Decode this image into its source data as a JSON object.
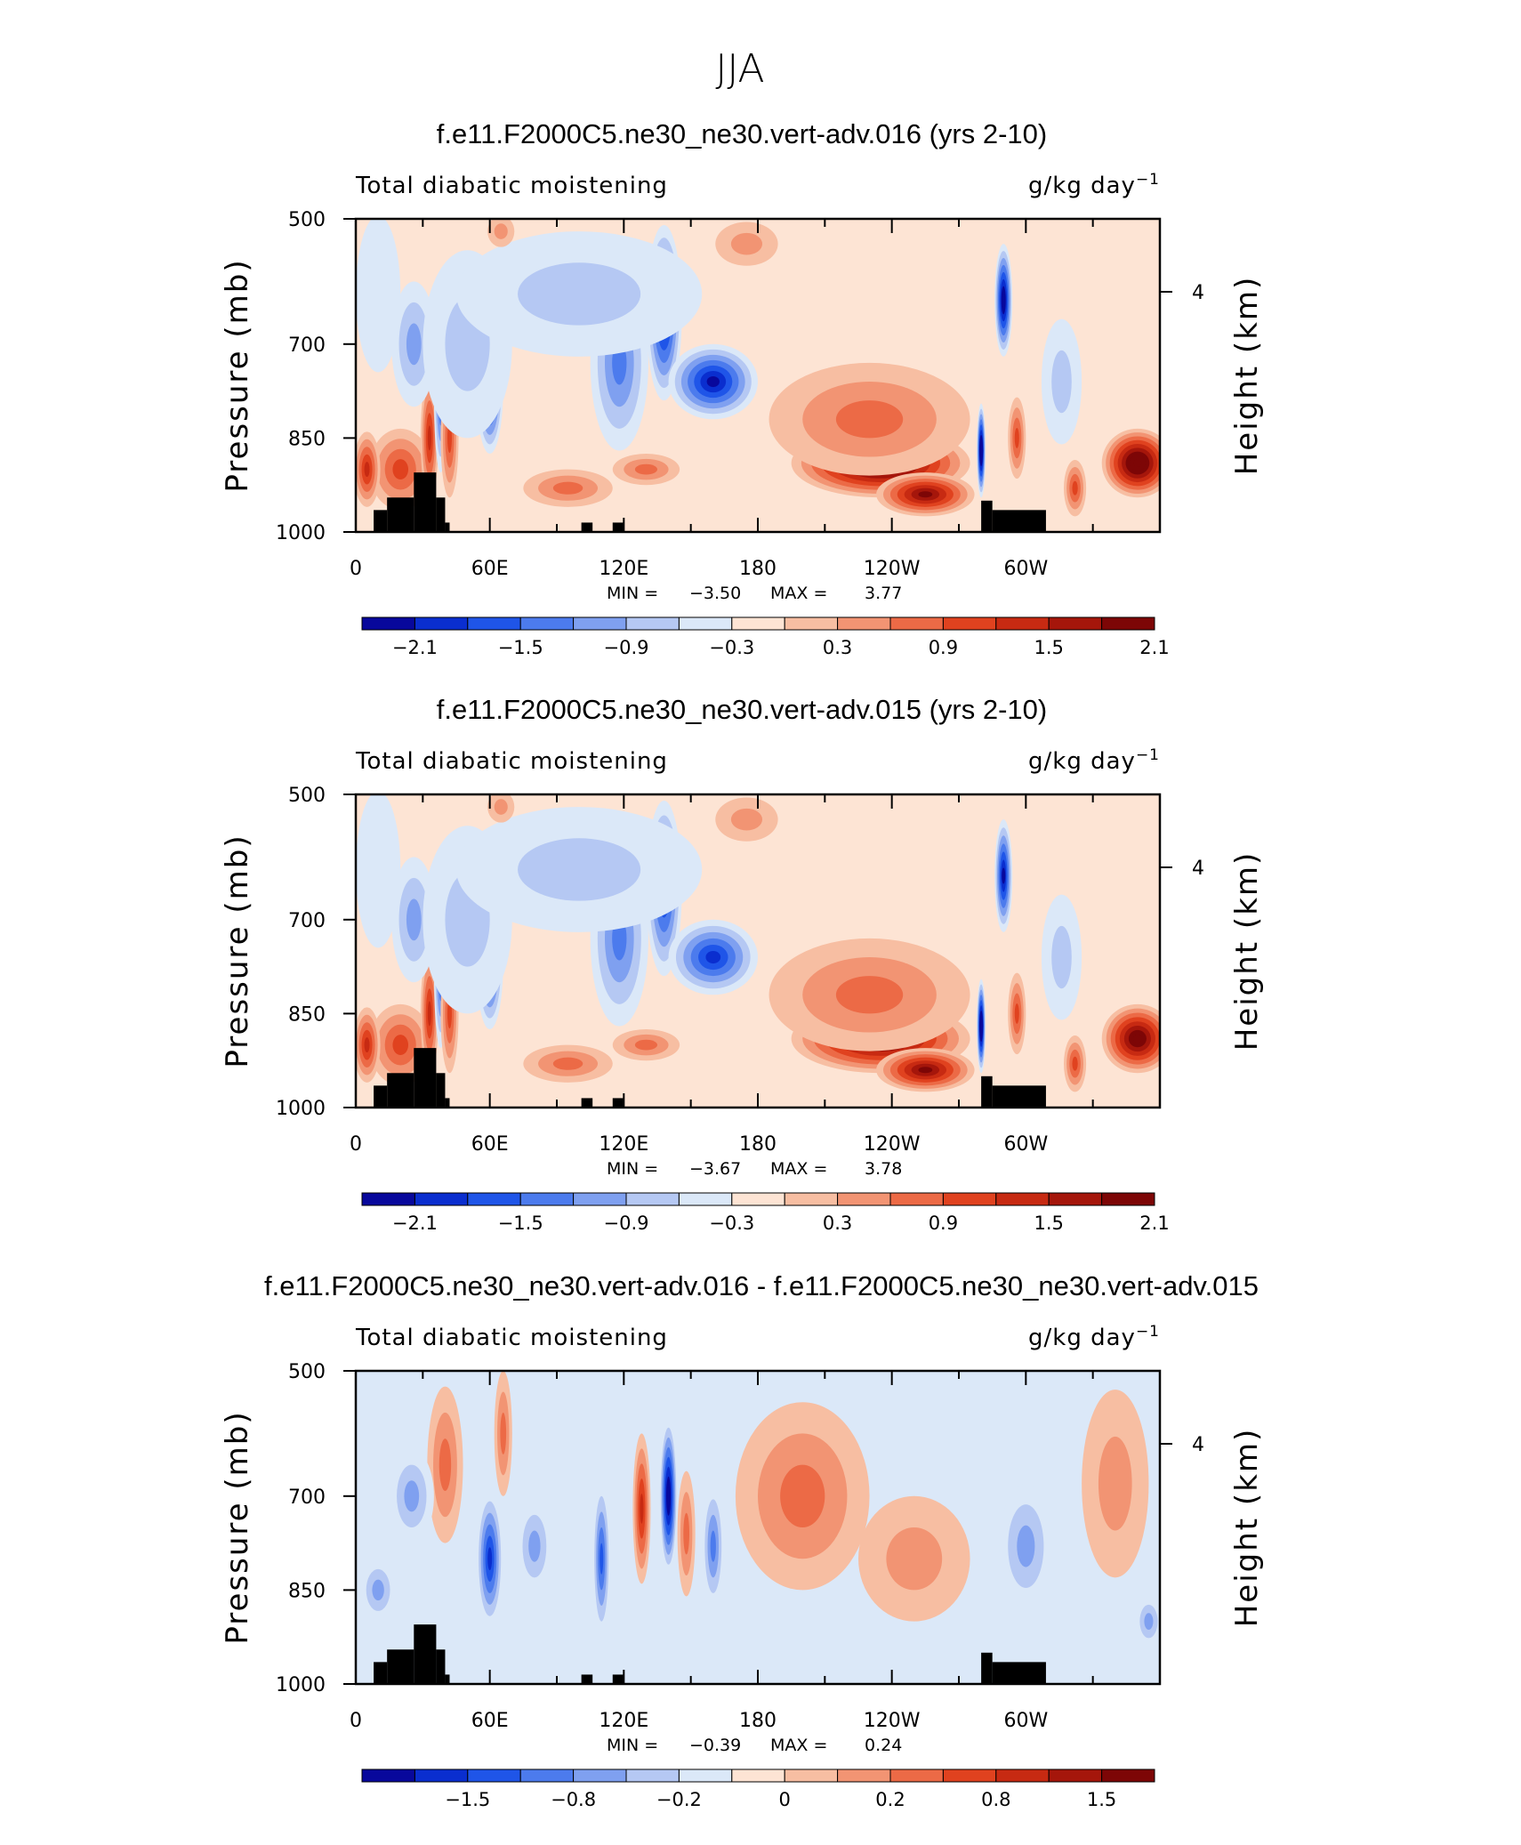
{
  "figure_title": "JJA",
  "chart_data": [
    {
      "type": "heatmap",
      "title": "f.e11.F2000C5.ne30_ne30.vert-adv.016 (yrs 2-10)",
      "left_label": "Total diabatic moistening",
      "units_base": "g/kg day",
      "units_exp": "−1",
      "ylabel": "Pressure (mb)",
      "ylabel_right": "Height (km)",
      "y_ticks": [
        "500",
        "700",
        "850",
        "1000"
      ],
      "y_tick_values": [
        500,
        700,
        850,
        1000
      ],
      "y_right_tick": "4",
      "x_ticks": [
        "0",
        "60E",
        "120E",
        "180",
        "120W",
        "60W"
      ],
      "x_tick_values": [
        0,
        60,
        120,
        180,
        240,
        300
      ],
      "xlim": [
        0,
        360
      ],
      "ylim": [
        1000,
        500
      ],
      "min_label": "MIN =",
      "min_value": "−3.50",
      "max_label": "MAX =",
      "max_value": "3.77",
      "colorbar_colors": [
        "#08089c",
        "#0a2ecf",
        "#1f55e8",
        "#4c7bed",
        "#7fa0f0",
        "#b5c8f3",
        "#dbe8f8",
        "#fde4d4",
        "#f7bea2",
        "#f29473",
        "#ec6a46",
        "#e0421f",
        "#c72a12",
        "#a5160b",
        "#7d0606"
      ],
      "colorbar_labels": [
        "−2.1",
        "−1.5",
        "−0.9",
        "−0.3",
        "0.3",
        "0.9",
        "1.5",
        "2.1"
      ],
      "features": [
        {
          "lon": 20,
          "p": 900,
          "v": 1.2,
          "w": 14,
          "h": 130
        },
        {
          "lon": 33,
          "p": 850,
          "v": 1.5,
          "w": 4,
          "h": 200
        },
        {
          "lon": 38,
          "p": 780,
          "v": -1.6,
          "w": 3,
          "h": 250
        },
        {
          "lon": 42,
          "p": 850,
          "v": 1.2,
          "w": 4,
          "h": 190
        },
        {
          "lon": 26,
          "p": 700,
          "v": -0.8,
          "w": 10,
          "h": 200
        },
        {
          "lon": 60,
          "p": 770,
          "v": -2.0,
          "w": 6,
          "h": 210
        },
        {
          "lon": 50,
          "p": 700,
          "v": -0.6,
          "w": 20,
          "h": 300
        },
        {
          "lon": 95,
          "p": 930,
          "v": 1.0,
          "w": 20,
          "h": 60
        },
        {
          "lon": 130,
          "p": 900,
          "v": 0.9,
          "w": 15,
          "h": 50
        },
        {
          "lon": 118,
          "p": 730,
          "v": -1.2,
          "w": 13,
          "h": 280
        },
        {
          "lon": 138,
          "p": 650,
          "v": -2.2,
          "w": 8,
          "h": 280
        },
        {
          "lon": 160,
          "p": 760,
          "v": -2.0,
          "w": 20,
          "h": 120
        },
        {
          "lon": 100,
          "p": 620,
          "v": -0.5,
          "w": 55,
          "h": 200
        },
        {
          "lon": 175,
          "p": 540,
          "v": 0.6,
          "w": 14,
          "h": 70
        },
        {
          "lon": 65,
          "p": 520,
          "v": 0.5,
          "w": 6,
          "h": 50
        },
        {
          "lon": 235,
          "p": 890,
          "v": 2.8,
          "w": 40,
          "h": 110
        },
        {
          "lon": 255,
          "p": 940,
          "v": 2.0,
          "w": 22,
          "h": 70
        },
        {
          "lon": 230,
          "p": 820,
          "v": 1.0,
          "w": 45,
          "h": 180
        },
        {
          "lon": 280,
          "p": 870,
          "v": -2.8,
          "w": 2,
          "h": 150
        },
        {
          "lon": 290,
          "p": 630,
          "v": -2.4,
          "w": 4,
          "h": 180
        },
        {
          "lon": 296,
          "p": 850,
          "v": 1.2,
          "w": 4,
          "h": 130
        },
        {
          "lon": 316,
          "p": 760,
          "v": -0.7,
          "w": 9,
          "h": 200
        },
        {
          "lon": 322,
          "p": 930,
          "v": 1.2,
          "w": 5,
          "h": 90
        },
        {
          "lon": 350,
          "p": 890,
          "v": 2.6,
          "w": 16,
          "h": 110
        },
        {
          "lon": 5,
          "p": 900,
          "v": 1.6,
          "w": 6,
          "h": 120
        },
        {
          "lon": 10,
          "p": 620,
          "v": -0.4,
          "w": 10,
          "h": 250
        }
      ],
      "feature_scale": 1.0
    },
    {
      "type": "heatmap",
      "title": "f.e11.F2000C5.ne30_ne30.vert-adv.015 (yrs 2-10)",
      "left_label": "Total diabatic moistening",
      "units_base": "g/kg day",
      "units_exp": "−1",
      "ylabel": "Pressure (mb)",
      "ylabel_right": "Height (km)",
      "y_ticks": [
        "500",
        "700",
        "850",
        "1000"
      ],
      "y_tick_values": [
        500,
        700,
        850,
        1000
      ],
      "y_right_tick": "4",
      "x_ticks": [
        "0",
        "60E",
        "120E",
        "180",
        "120W",
        "60W"
      ],
      "x_tick_values": [
        0,
        60,
        120,
        180,
        240,
        300
      ],
      "xlim": [
        0,
        360
      ],
      "ylim": [
        1000,
        500
      ],
      "min_label": "MIN =",
      "min_value": "−3.67",
      "max_label": "MAX =",
      "max_value": "3.78",
      "colorbar_colors": [
        "#08089c",
        "#0a2ecf",
        "#1f55e8",
        "#4c7bed",
        "#7fa0f0",
        "#b5c8f3",
        "#dbe8f8",
        "#fde4d4",
        "#f7bea2",
        "#f29473",
        "#ec6a46",
        "#e0421f",
        "#c72a12",
        "#a5160b",
        "#7d0606"
      ],
      "colorbar_labels": [
        "−2.1",
        "−1.5",
        "−0.9",
        "−0.3",
        "0.3",
        "0.9",
        "1.5",
        "2.1"
      ],
      "features": [
        {
          "lon": 20,
          "p": 900,
          "v": 1.2,
          "w": 14,
          "h": 130
        },
        {
          "lon": 33,
          "p": 850,
          "v": 1.5,
          "w": 4,
          "h": 200
        },
        {
          "lon": 38,
          "p": 780,
          "v": -1.6,
          "w": 3,
          "h": 250
        },
        {
          "lon": 42,
          "p": 850,
          "v": 1.2,
          "w": 4,
          "h": 190
        },
        {
          "lon": 26,
          "p": 700,
          "v": -0.8,
          "w": 10,
          "h": 200
        },
        {
          "lon": 60,
          "p": 770,
          "v": -1.8,
          "w": 6,
          "h": 210
        },
        {
          "lon": 50,
          "p": 700,
          "v": -0.6,
          "w": 20,
          "h": 300
        },
        {
          "lon": 95,
          "p": 930,
          "v": 1.0,
          "w": 20,
          "h": 60
        },
        {
          "lon": 130,
          "p": 900,
          "v": 0.9,
          "w": 15,
          "h": 50
        },
        {
          "lon": 118,
          "p": 730,
          "v": -1.1,
          "w": 13,
          "h": 280
        },
        {
          "lon": 138,
          "p": 650,
          "v": -1.8,
          "w": 8,
          "h": 280
        },
        {
          "lon": 160,
          "p": 760,
          "v": -1.9,
          "w": 20,
          "h": 120
        },
        {
          "lon": 100,
          "p": 620,
          "v": -0.5,
          "w": 55,
          "h": 200
        },
        {
          "lon": 175,
          "p": 540,
          "v": 0.6,
          "w": 14,
          "h": 70
        },
        {
          "lon": 65,
          "p": 520,
          "v": 0.5,
          "w": 6,
          "h": 50
        },
        {
          "lon": 235,
          "p": 890,
          "v": 2.4,
          "w": 40,
          "h": 110
        },
        {
          "lon": 255,
          "p": 940,
          "v": 2.0,
          "w": 22,
          "h": 70
        },
        {
          "lon": 230,
          "p": 820,
          "v": 1.0,
          "w": 45,
          "h": 180
        },
        {
          "lon": 280,
          "p": 870,
          "v": -2.6,
          "w": 2,
          "h": 150
        },
        {
          "lon": 290,
          "p": 630,
          "v": -2.2,
          "w": 4,
          "h": 180
        },
        {
          "lon": 296,
          "p": 850,
          "v": 1.2,
          "w": 4,
          "h": 130
        },
        {
          "lon": 316,
          "p": 760,
          "v": -0.7,
          "w": 9,
          "h": 200
        },
        {
          "lon": 322,
          "p": 930,
          "v": 1.2,
          "w": 5,
          "h": 90
        },
        {
          "lon": 350,
          "p": 890,
          "v": 2.4,
          "w": 16,
          "h": 110
        },
        {
          "lon": 5,
          "p": 900,
          "v": 1.6,
          "w": 6,
          "h": 120
        },
        {
          "lon": 10,
          "p": 620,
          "v": -0.4,
          "w": 10,
          "h": 250
        }
      ],
      "feature_scale": 1.0
    },
    {
      "type": "heatmap",
      "title": "f.e11.F2000C5.ne30_ne30.vert-adv.016 - f.e11.F2000C5.ne30_ne30.vert-adv.015",
      "left_label": "Total diabatic moistening",
      "units_base": "g/kg day",
      "units_exp": "−1",
      "ylabel": "Pressure (mb)",
      "ylabel_right": "Height (km)",
      "y_ticks": [
        "500",
        "700",
        "850",
        "1000"
      ],
      "y_tick_values": [
        500,
        700,
        850,
        1000
      ],
      "y_right_tick": "4",
      "x_ticks": [
        "0",
        "60E",
        "120E",
        "180",
        "120W",
        "60W"
      ],
      "x_tick_values": [
        0,
        60,
        120,
        180,
        240,
        300
      ],
      "xlim": [
        0,
        360
      ],
      "ylim": [
        1000,
        500
      ],
      "min_label": "MIN =",
      "min_value": "−0.39",
      "max_label": "MAX =",
      "max_value": "0.24",
      "colorbar_colors": [
        "#08089c",
        "#0a2ecf",
        "#1f55e8",
        "#4c7bed",
        "#7fa0f0",
        "#b5c8f3",
        "#dbe8f8",
        "#fde4d4",
        "#f7bea2",
        "#f29473",
        "#ec6a46",
        "#e0421f",
        "#c72a12",
        "#a5160b",
        "#7d0606"
      ],
      "colorbar_labels": [
        "−1.5",
        "−0.8",
        "−0.2",
        "0",
        "0.2",
        "0.8",
        "1.5"
      ],
      "features": [
        {
          "lon": 60,
          "p": 800,
          "v": -0.7,
          "w": 6,
          "h": 220
        },
        {
          "lon": 66,
          "p": 600,
          "v": 0.4,
          "w": 4,
          "h": 200
        },
        {
          "lon": 40,
          "p": 650,
          "v": 0.3,
          "w": 8,
          "h": 250
        },
        {
          "lon": 110,
          "p": 800,
          "v": -0.6,
          "w": 4,
          "h": 250
        },
        {
          "lon": 128,
          "p": 720,
          "v": 0.6,
          "w": 4,
          "h": 240
        },
        {
          "lon": 140,
          "p": 700,
          "v": -0.9,
          "w": 4,
          "h": 250
        },
        {
          "lon": 148,
          "p": 760,
          "v": 0.4,
          "w": 4,
          "h": 200
        },
        {
          "lon": 160,
          "p": 780,
          "v": -0.5,
          "w": 5,
          "h": 200
        },
        {
          "lon": 80,
          "p": 780,
          "v": -0.4,
          "w": 8,
          "h": 150
        },
        {
          "lon": 200,
          "p": 700,
          "v": 0.3,
          "w": 30,
          "h": 300
        },
        {
          "lon": 250,
          "p": 800,
          "v": 0.25,
          "w": 25,
          "h": 200
        },
        {
          "lon": 300,
          "p": 780,
          "v": -0.4,
          "w": 12,
          "h": 200
        },
        {
          "lon": 340,
          "p": 680,
          "v": 0.2,
          "w": 15,
          "h": 300
        },
        {
          "lon": 10,
          "p": 850,
          "v": -0.4,
          "w": 8,
          "h": 100
        },
        {
          "lon": 25,
          "p": 700,
          "v": -0.3,
          "w": 10,
          "h": 150
        },
        {
          "lon": 355,
          "p": 900,
          "v": -0.4,
          "w": 6,
          "h": 80
        }
      ],
      "feature_scale": 1.0
    }
  ]
}
